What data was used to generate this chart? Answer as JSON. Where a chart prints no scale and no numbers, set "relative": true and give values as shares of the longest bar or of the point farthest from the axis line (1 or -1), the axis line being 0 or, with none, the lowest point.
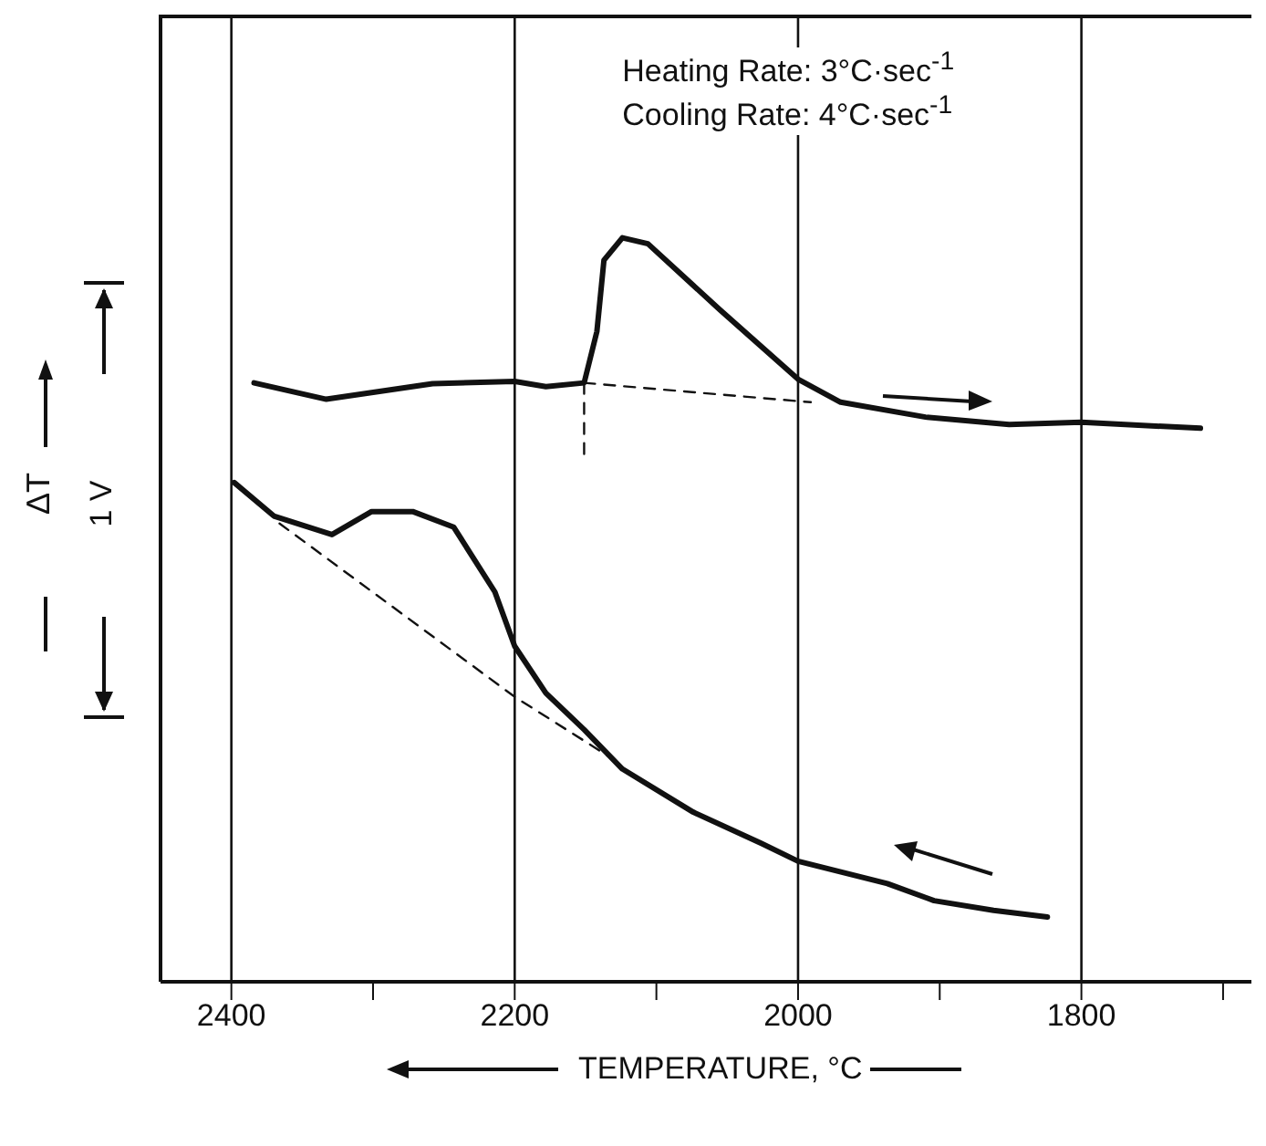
{
  "chart_data": {
    "type": "line",
    "relative": true,
    "xlabel": "TEMPERATURE, °C",
    "ylabel": "ΔT",
    "annotations": [
      "Heating Rate: 3°C·sec$^{-1}$",
      "Cooling Rate: 4°C·sec$^{-1}$",
      "1 V"
    ],
    "xlim": [
      2450,
      1680
    ],
    "xticks": [
      2400,
      {
        "value": 2300,
        "label": null
      },
      2200,
      {
        "value": 2100,
        "label": null
      },
      2000,
      {
        "value": 1900,
        "label": null
      },
      1800,
      {
        "value": 1700,
        "label": null
      }
    ],
    "grid": "x",
    "line_style": "solid",
    "marker": "none",
    "series": [
      {
        "color": "#111111",
        "x": [
          2384,
          2333,
          2258,
          2200,
          2178,
          2151,
          2142,
          2137,
          2124,
          2106,
          2055,
          2000,
          1970,
          1910,
          1851,
          1800,
          1716
        ],
        "values": [
          0.805,
          0.783,
          0.804,
          0.807,
          0.8,
          0.805,
          0.874,
          0.97,
          1.0,
          0.992,
          0.903,
          0.81,
          0.779,
          0.759,
          0.749,
          0.752,
          0.744
        ]
      },
      {
        "color": "#111111",
        "line_style": "dashed",
        "x": [
          2151,
          1991
        ],
        "values": [
          0.805,
          0.779
        ]
      },
      {
        "color": "#111111",
        "line_style": "dashed",
        "x": [
          2151,
          2151
        ],
        "values": [
          0.805,
          0.704
        ]
      },
      {
        "color": "#111111",
        "x": [
          2398,
          2370,
          2329,
          2301,
          2272,
          2243,
          2214,
          2200,
          2178,
          2151,
          2124,
          2074,
          2026,
          2000,
          1937,
          1904,
          1862,
          1824
        ],
        "values": [
          0.671,
          0.626,
          0.601,
          0.632,
          0.632,
          0.611,
          0.524,
          0.451,
          0.388,
          0.339,
          0.286,
          0.228,
          0.186,
          0.162,
          0.132,
          0.109,
          0.096,
          0.087
        ]
      },
      {
        "color": "#111111",
        "line_style": "dashed",
        "x": [
          2366,
          2200,
          2132
        ],
        "values": [
          0.616,
          0.383,
          0.301
        ]
      }
    ]
  }
}
